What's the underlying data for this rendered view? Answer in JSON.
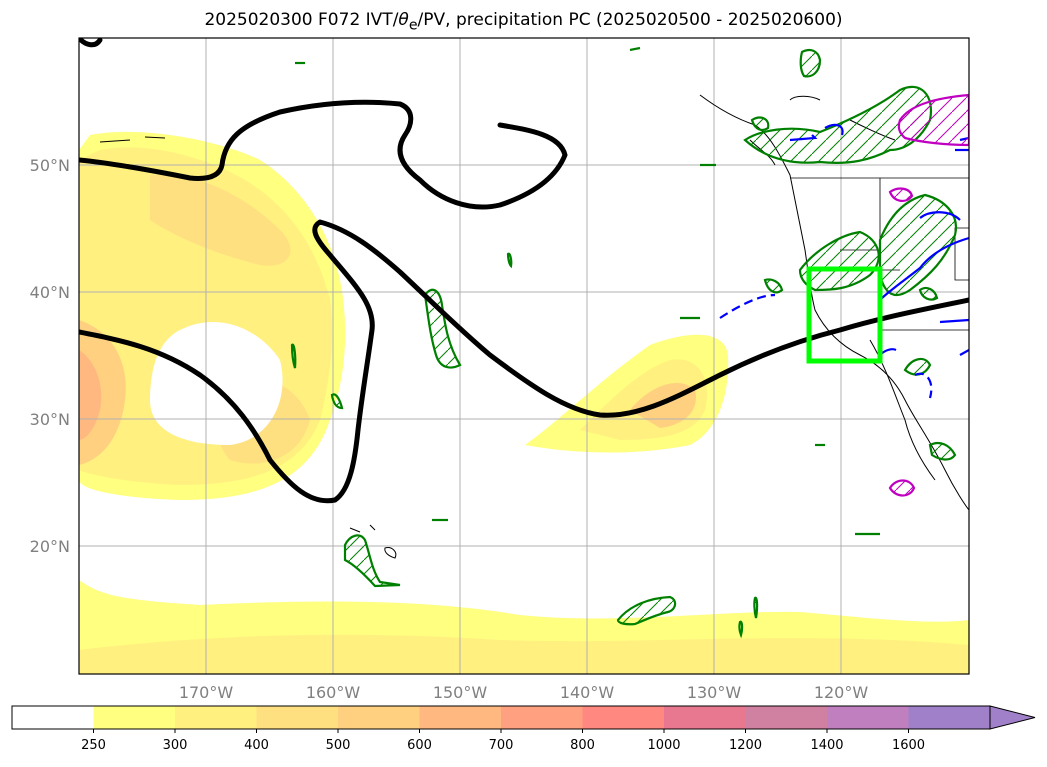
{
  "title": {
    "prefix": "2025020300 F072 IVT/",
    "theta": "θ",
    "theta_sub": "e",
    "suffix": "/PV, precipitation PC (2025020500 - 2025020600)"
  },
  "map": {
    "projection": "PlateCarree",
    "lon_range": [
      -180,
      -110
    ],
    "lat_range": [
      10,
      60
    ],
    "lon_ticks": [
      {
        "value": -170,
        "label": "170°W"
      },
      {
        "value": -160,
        "label": "160°W"
      },
      {
        "value": -150,
        "label": "150°W"
      },
      {
        "value": -140,
        "label": "140°W"
      },
      {
        "value": -130,
        "label": "130°W"
      },
      {
        "value": -120,
        "label": "120°W"
      }
    ],
    "lat_ticks": [
      {
        "value": 50,
        "label": "50°N"
      },
      {
        "value": 40,
        "label": "40°N"
      },
      {
        "value": 30,
        "label": "30°N"
      },
      {
        "value": 20,
        "label": "20°N"
      }
    ],
    "gridlines": true,
    "highlight_box": {
      "lon_min": -122.5,
      "lon_max": -116.5,
      "lat_min": 34.5,
      "lat_max": 42,
      "color": "#00ff00"
    },
    "colors": {
      "pv_contour": "#000000",
      "precip_green": "#008000",
      "precip_blue": "#0000ff",
      "precip_magenta": "#c000c0",
      "highlight": "#00ff00"
    }
  },
  "colorbar": {
    "levels": [
      "250",
      "300",
      "400",
      "500",
      "600",
      "700",
      "800",
      "1000",
      "1200",
      "1400",
      "1600"
    ],
    "colors": [
      "#ffffff",
      "#ffff80",
      "#fff080",
      "#ffe080",
      "#ffd080",
      "#ffb880",
      "#ffa080",
      "#ff8880",
      "#e87890",
      "#d080a0",
      "#c080c0",
      "#a080c8"
    ],
    "extend": "max"
  }
}
